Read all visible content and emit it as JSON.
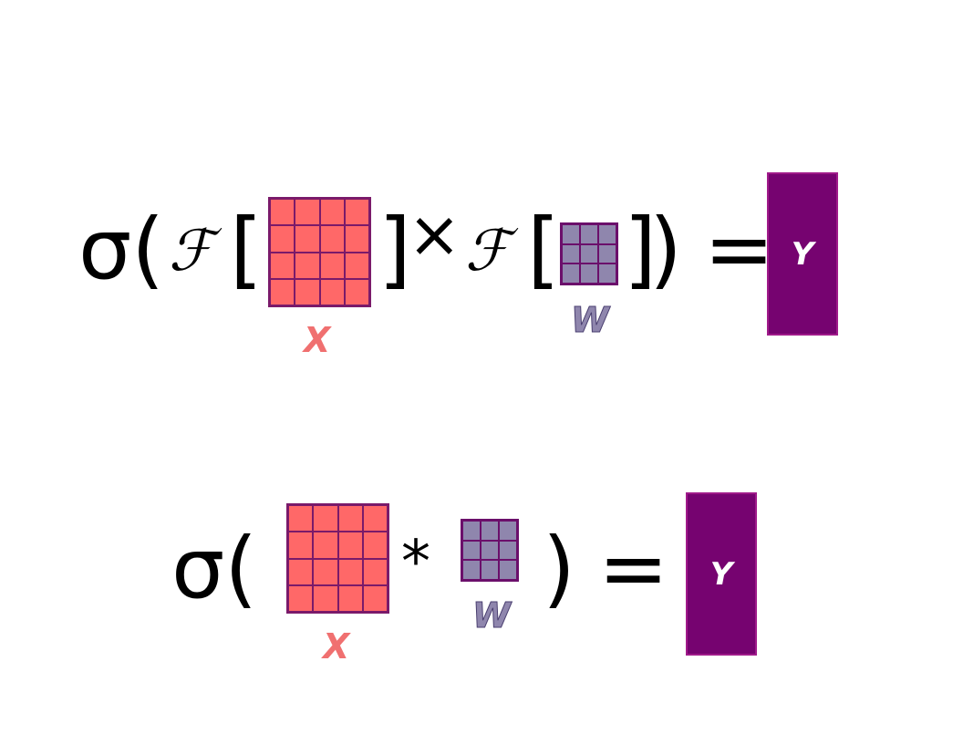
{
  "colors": {
    "x_fill": "#ff6868",
    "x_grid": "#7a1a6a",
    "w_fill": "#8f86ad",
    "w_grid": "#6b0f6b",
    "y_fill": "#760370",
    "label_x": "#f07070"
  },
  "equation1": {
    "sigma": "σ(",
    "fourier1": "ℱ",
    "bracket_open1": "[",
    "bracket_close1": "]",
    "times": "×",
    "fourier2": "ℱ",
    "bracket_open2": "[",
    "bracket_close2": "]",
    "close_paren": ")",
    "equals": "=",
    "x_grid": {
      "rows": 4,
      "cols": 4
    },
    "w_grid": {
      "rows": 3,
      "cols": 3
    },
    "x_label": "X",
    "w_label": "W",
    "y_label": "Y"
  },
  "equation2": {
    "sigma": "σ(",
    "conv": "*",
    "close_paren": ")",
    "equals": "=",
    "x_grid": {
      "rows": 4,
      "cols": 4
    },
    "w_grid": {
      "rows": 3,
      "cols": 3
    },
    "x_label": "X",
    "w_label": "W",
    "y_label": "Y"
  }
}
